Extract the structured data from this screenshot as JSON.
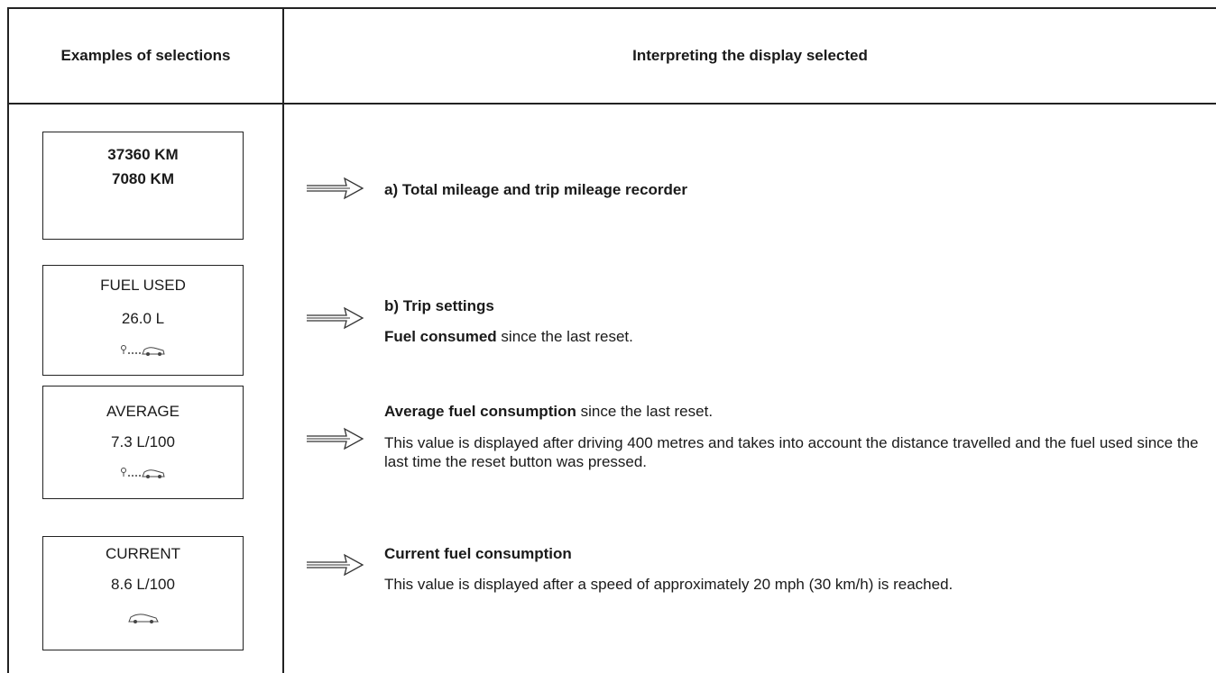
{
  "header": {
    "left": "Examples of selections",
    "right": "Interpreting the display selected"
  },
  "rows": [
    {
      "display": [
        "37360 KM",
        "7080 KM"
      ],
      "lines": [
        {
          "bold": "a) Total mileage and trip mileage recorder"
        }
      ]
    },
    {
      "display": [
        "FUEL USED",
        "26.0 L"
      ],
      "lines": [
        {
          "bold": "b) Trip settings"
        },
        {
          "bold": "Fuel consumed",
          "text": " since the last reset."
        }
      ]
    },
    {
      "display": [
        "AVERAGE",
        "7.3 L/100"
      ],
      "lines": [
        {
          "bold": "Average fuel consumption",
          "text": " since the last reset."
        },
        {
          "text": "This value is displayed after driving 400 metres and takes into account the distance travelled and the fuel used since the last time the reset button was pressed."
        }
      ]
    },
    {
      "display": [
        "CURRENT",
        "8.6 L/100"
      ],
      "lines": [
        {
          "bold": "Current fuel consumption"
        },
        {
          "text": "This value is displayed after a speed of approximately 20 mph (30 km/h) is reached."
        }
      ]
    }
  ]
}
